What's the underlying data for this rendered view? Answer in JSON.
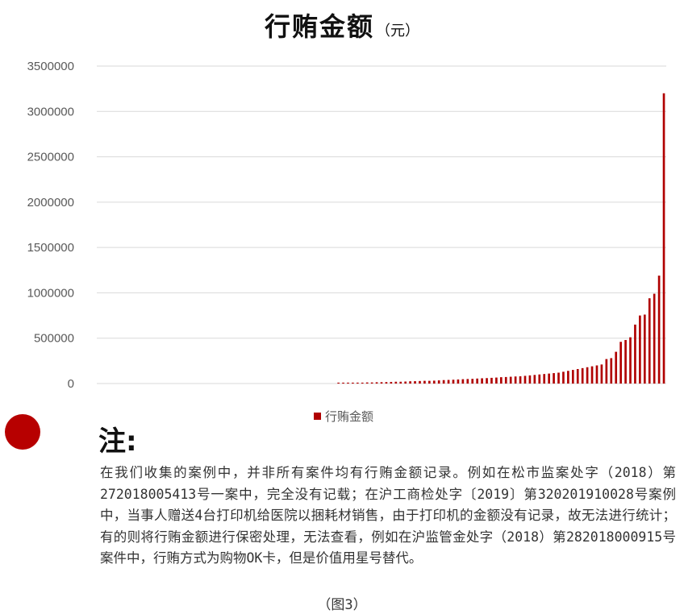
{
  "header": {
    "title": "行贿金额",
    "unit": "（元）"
  },
  "chart_data": {
    "type": "bar",
    "title": "行贿金额（元）",
    "ylim": [
      0,
      3500000
    ],
    "yticks": [
      "0",
      "500000",
      "1000000",
      "1500000",
      "2000000",
      "2500000",
      "3000000",
      "3500000"
    ],
    "grid": "horizontal",
    "legend": "bottom",
    "series": [
      {
        "name": "行贿金额",
        "color": "#b00000",
        "values": [
          0,
          0,
          0,
          0,
          0,
          0,
          0,
          0,
          0,
          0,
          0,
          0,
          0,
          0,
          0,
          0,
          0,
          0,
          0,
          0,
          0,
          0,
          0,
          0,
          0,
          0,
          0,
          0,
          0,
          0,
          0,
          0,
          0,
          0,
          0,
          0,
          0,
          0,
          0,
          0,
          0,
          0,
          0,
          0,
          0,
          0,
          0,
          0,
          0,
          0,
          10000,
          10000,
          10000,
          10000,
          10000,
          10000,
          12000,
          12000,
          14000,
          15000,
          16000,
          18000,
          20000,
          20000,
          22000,
          25000,
          26000,
          28000,
          30000,
          30000,
          32000,
          35000,
          38000,
          40000,
          42000,
          45000,
          48000,
          50000,
          52000,
          55000,
          58000,
          60000,
          63000,
          66000,
          70000,
          72000,
          75000,
          78000,
          80000,
          85000,
          90000,
          95000,
          100000,
          105000,
          110000,
          115000,
          120000,
          130000,
          140000,
          150000,
          160000,
          170000,
          180000,
          190000,
          200000,
          210000,
          270000,
          280000,
          350000,
          460000,
          480000,
          510000,
          650000,
          750000,
          760000,
          940000,
          990000,
          1190000,
          3200000
        ]
      }
    ]
  },
  "legend": {
    "label": "行贿金额"
  },
  "note": {
    "heading": "注:",
    "body": "在我们收集的案例中，并非所有案件均有行贿金额记录。例如在松市监案处字（2018）第272018005413号一案中，完全没有记载；在沪工商检处字〔2019〕第320201910028号案例中，当事人赠送4台打印机给医院以捆耗材销售，由于打印机的金额没有记录，故无法进行统计；有的则将行贿金额进行保密处理，无法查看，例如在沪监管金处字（2018）第282018000915号案件中，行贿方式为购物OK卡，但是价值用星号替代。"
  },
  "caption": "（图3）"
}
